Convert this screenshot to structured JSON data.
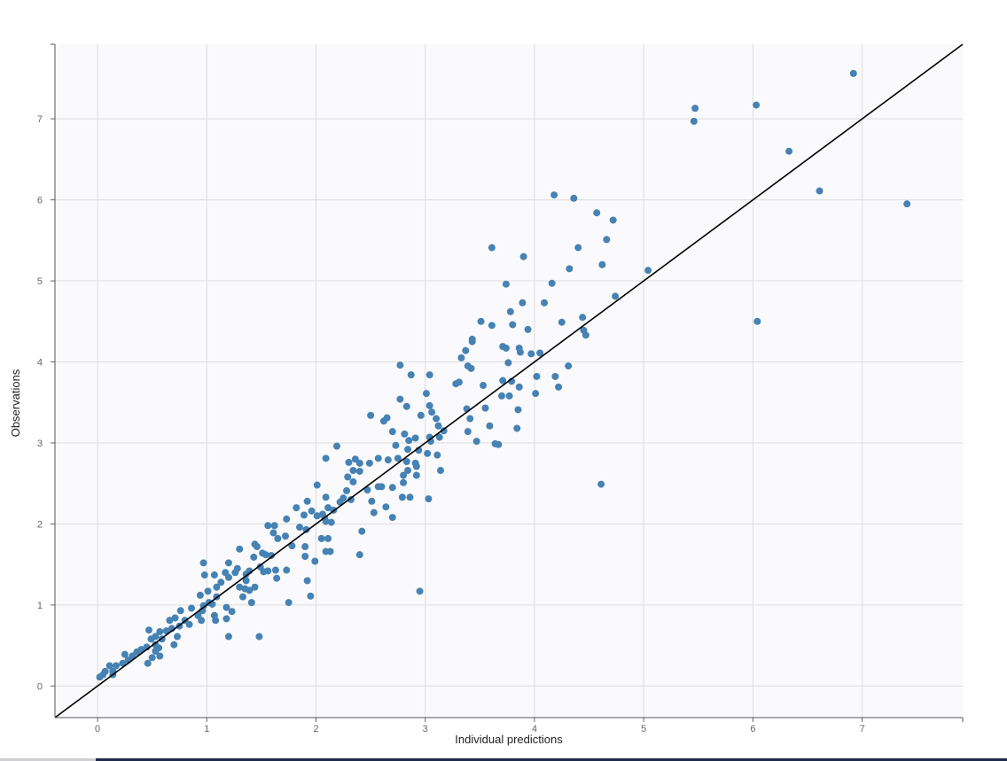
{
  "chart_data": {
    "type": "scatter",
    "title": "",
    "xlabel": "Individual predictions",
    "ylabel": "Observations",
    "xlim": [
      -0.39,
      7.92
    ],
    "ylim": [
      -0.39,
      7.92
    ],
    "grid": true,
    "x_ticks": [
      "0",
      "1",
      "2",
      "3",
      "4",
      "5",
      "6",
      "7"
    ],
    "y_ticks": [
      "0",
      "1",
      "2",
      "3",
      "4",
      "5",
      "6",
      "7"
    ],
    "reference_line": "identity y = x",
    "colors": {
      "points": "#4682b4",
      "line": "#000000",
      "plot_background": "#fafafc",
      "grid": "#dddddd"
    },
    "points": [
      [
        6.92,
        7.56
      ],
      [
        5.47,
        7.13
      ],
      [
        5.46,
        6.97
      ],
      [
        6.03,
        7.17
      ],
      [
        6.33,
        6.6
      ],
      [
        6.61,
        6.11
      ],
      [
        7.41,
        5.95
      ],
      [
        6.04,
        4.5
      ],
      [
        5.04,
        5.13
      ],
      [
        4.74,
        4.81
      ],
      [
        4.18,
        6.06
      ],
      [
        4.36,
        6.02
      ],
      [
        4.57,
        5.84
      ],
      [
        4.72,
        5.75
      ],
      [
        4.66,
        5.51
      ],
      [
        4.4,
        5.41
      ],
      [
        4.62,
        5.2
      ],
      [
        4.32,
        5.15
      ],
      [
        4.16,
        4.97
      ],
      [
        3.61,
        5.41
      ],
      [
        3.9,
        5.3
      ],
      [
        3.74,
        4.96
      ],
      [
        3.89,
        4.73
      ],
      [
        3.78,
        4.62
      ],
      [
        4.09,
        4.73
      ],
      [
        3.51,
        4.5
      ],
      [
        3.61,
        4.45
      ],
      [
        3.8,
        4.46
      ],
      [
        3.94,
        4.4
      ],
      [
        4.25,
        4.49
      ],
      [
        4.44,
        4.55
      ],
      [
        4.45,
        4.39
      ],
      [
        4.47,
        4.33
      ],
      [
        3.43,
        4.28
      ],
      [
        3.43,
        4.25
      ],
      [
        3.71,
        4.19
      ],
      [
        3.74,
        4.17
      ],
      [
        3.37,
        4.14
      ],
      [
        3.86,
        4.17
      ],
      [
        3.87,
        4.12
      ],
      [
        3.97,
        4.1
      ],
      [
        4.05,
        4.11
      ],
      [
        3.33,
        4.05
      ],
      [
        3.76,
        3.99
      ],
      [
        4.31,
        3.95
      ],
      [
        3.39,
        3.95
      ],
      [
        3.42,
        3.92
      ],
      [
        2.77,
        3.96
      ],
      [
        2.87,
        3.84
      ],
      [
        3.04,
        3.84
      ],
      [
        3.28,
        3.73
      ],
      [
        3.31,
        3.75
      ],
      [
        3.53,
        3.71
      ],
      [
        3.71,
        3.77
      ],
      [
        3.79,
        3.76
      ],
      [
        3.86,
        3.69
      ],
      [
        4.02,
        3.82
      ],
      [
        4.19,
        3.82
      ],
      [
        4.22,
        3.69
      ],
      [
        3.7,
        3.58
      ],
      [
        3.77,
        3.58
      ],
      [
        4.01,
        3.61
      ],
      [
        3.01,
        3.61
      ],
      [
        2.77,
        3.54
      ],
      [
        2.83,
        3.45
      ],
      [
        3.04,
        3.46
      ],
      [
        3.06,
        3.38
      ],
      [
        3.1,
        3.3
      ],
      [
        3.55,
        3.43
      ],
      [
        3.38,
        3.42
      ],
      [
        3.85,
        3.41
      ],
      [
        2.5,
        3.34
      ],
      [
        2.65,
        3.31
      ],
      [
        2.62,
        3.27
      ],
      [
        2.96,
        3.34
      ],
      [
        3.41,
        3.3
      ],
      [
        3.12,
        3.21
      ],
      [
        3.59,
        3.21
      ],
      [
        3.84,
        3.18
      ],
      [
        3.17,
        3.15
      ],
      [
        3.39,
        3.14
      ],
      [
        2.7,
        3.14
      ],
      [
        2.81,
        3.11
      ],
      [
        3.13,
        3.07
      ],
      [
        3.04,
        3.07
      ],
      [
        2.91,
        3.06
      ],
      [
        2.85,
        3.03
      ],
      [
        3.47,
        3.02
      ],
      [
        3.64,
        2.99
      ],
      [
        3.67,
        2.98
      ],
      [
        3.05,
        3.02
      ],
      [
        2.73,
        2.97
      ],
      [
        2.84,
        2.92
      ],
      [
        2.94,
        2.91
      ],
      [
        3.02,
        2.87
      ],
      [
        3.11,
        2.85
      ],
      [
        2.19,
        2.96
      ],
      [
        2.57,
        2.81
      ],
      [
        2.66,
        2.79
      ],
      [
        2.75,
        2.81
      ],
      [
        2.83,
        2.77
      ],
      [
        2.91,
        2.75
      ],
      [
        2.3,
        2.76
      ],
      [
        2.36,
        2.8
      ],
      [
        2.09,
        2.81
      ],
      [
        2.4,
        2.75
      ],
      [
        2.49,
        2.75
      ],
      [
        2.92,
        2.71
      ],
      [
        3.14,
        2.66
      ],
      [
        2.34,
        2.66
      ],
      [
        2.4,
        2.65
      ],
      [
        2.84,
        2.66
      ],
      [
        2.92,
        2.6
      ],
      [
        2.8,
        2.6
      ],
      [
        2.29,
        2.58
      ],
      [
        2.34,
        2.52
      ],
      [
        2.8,
        2.51
      ],
      [
        2.6,
        2.46
      ],
      [
        2.57,
        2.46
      ],
      [
        2.7,
        2.45
      ],
      [
        2.01,
        2.48
      ],
      [
        2.47,
        2.42
      ],
      [
        2.28,
        2.41
      ],
      [
        4.61,
        2.49
      ],
      [
        2.79,
        2.33
      ],
      [
        3.03,
        2.31
      ],
      [
        2.86,
        2.33
      ],
      [
        2.09,
        2.33
      ],
      [
        2.25,
        2.32
      ],
      [
        2.32,
        2.3
      ],
      [
        2.51,
        2.28
      ],
      [
        2.22,
        2.27
      ],
      [
        1.92,
        2.28
      ],
      [
        2.64,
        2.21
      ],
      [
        1.82,
        2.2
      ],
      [
        2.11,
        2.2
      ],
      [
        2.16,
        2.17
      ],
      [
        1.96,
        2.16
      ],
      [
        2.53,
        2.14
      ],
      [
        2.06,
        2.12
      ],
      [
        1.89,
        2.11
      ],
      [
        2.01,
        2.1
      ],
      [
        2.08,
        2.07
      ],
      [
        2.7,
        2.08
      ],
      [
        2.09,
        2.03
      ],
      [
        2.14,
        2.02
      ],
      [
        1.73,
        2.06
      ],
      [
        1.62,
        1.98
      ],
      [
        1.85,
        1.96
      ],
      [
        1.56,
        1.98
      ],
      [
        1.91,
        1.93
      ],
      [
        2.42,
        1.91
      ],
      [
        1.61,
        1.89
      ],
      [
        2.05,
        1.82
      ],
      [
        2.11,
        1.82
      ],
      [
        1.72,
        1.85
      ],
      [
        1.65,
        1.82
      ],
      [
        1.44,
        1.75
      ],
      [
        1.9,
        1.72
      ],
      [
        1.78,
        1.73
      ],
      [
        1.46,
        1.72
      ],
      [
        1.3,
        1.69
      ],
      [
        1.51,
        1.64
      ],
      [
        2.09,
        1.66
      ],
      [
        2.13,
        1.66
      ],
      [
        1.9,
        1.6
      ],
      [
        1.59,
        1.61
      ],
      [
        2.4,
        1.62
      ],
      [
        1.43,
        1.59
      ],
      [
        1.54,
        1.62
      ],
      [
        1.99,
        1.54
      ],
      [
        0.97,
        1.52
      ],
      [
        1.2,
        1.52
      ],
      [
        1.49,
        1.47
      ],
      [
        1.52,
        1.41
      ],
      [
        1.26,
        1.4
      ],
      [
        1.39,
        1.42
      ],
      [
        1.36,
        1.38
      ],
      [
        1.63,
        1.43
      ],
      [
        1.73,
        1.43
      ],
      [
        1.17,
        1.4
      ],
      [
        1.28,
        1.45
      ],
      [
        1.56,
        1.42
      ],
      [
        1.07,
        1.37
      ],
      [
        0.98,
        1.37
      ],
      [
        1.2,
        1.34
      ],
      [
        1.36,
        1.3
      ],
      [
        1.64,
        1.33
      ],
      [
        1.92,
        1.3
      ],
      [
        1.13,
        1.28
      ],
      [
        1.3,
        1.22
      ],
      [
        1.44,
        1.22
      ],
      [
        1.35,
        1.2
      ],
      [
        1.01,
        1.17
      ],
      [
        1.09,
        1.22
      ],
      [
        1.39,
        1.18
      ],
      [
        2.95,
        1.17
      ],
      [
        1.95,
        1.11
      ],
      [
        0.94,
        1.12
      ],
      [
        1.09,
        1.1
      ],
      [
        1.33,
        1.1
      ],
      [
        1.02,
        1.03
      ],
      [
        1.41,
        1.03
      ],
      [
        1.75,
        1.03
      ],
      [
        0.97,
        0.99
      ],
      [
        1.05,
        1.01
      ],
      [
        0.86,
        0.96
      ],
      [
        1.18,
        0.97
      ],
      [
        0.96,
        0.93
      ],
      [
        0.76,
        0.93
      ],
      [
        1.23,
        0.92
      ],
      [
        0.92,
        0.87
      ],
      [
        1.07,
        0.87
      ],
      [
        0.8,
        0.81
      ],
      [
        0.66,
        0.81
      ],
      [
        0.71,
        0.84
      ],
      [
        1.18,
        0.83
      ],
      [
        1.08,
        0.81
      ],
      [
        0.95,
        0.81
      ],
      [
        0.84,
        0.76
      ],
      [
        0.75,
        0.74
      ],
      [
        0.68,
        0.71
      ],
      [
        0.63,
        0.68
      ],
      [
        0.47,
        0.69
      ],
      [
        0.57,
        0.67
      ],
      [
        0.73,
        0.61
      ],
      [
        1.2,
        0.61
      ],
      [
        1.48,
        0.61
      ],
      [
        0.53,
        0.61
      ],
      [
        0.49,
        0.58
      ],
      [
        0.59,
        0.58
      ],
      [
        0.7,
        0.51
      ],
      [
        0.53,
        0.51
      ],
      [
        0.45,
        0.48
      ],
      [
        0.56,
        0.47
      ],
      [
        0.4,
        0.45
      ],
      [
        0.36,
        0.42
      ],
      [
        0.53,
        0.43
      ],
      [
        0.5,
        0.35
      ],
      [
        0.57,
        0.37
      ],
      [
        0.32,
        0.37
      ],
      [
        0.25,
        0.39
      ],
      [
        0.28,
        0.32
      ],
      [
        0.46,
        0.28
      ],
      [
        0.23,
        0.28
      ],
      [
        0.17,
        0.25
      ],
      [
        0.11,
        0.25
      ],
      [
        0.14,
        0.18
      ],
      [
        0.07,
        0.18
      ],
      [
        0.05,
        0.14
      ],
      [
        0.02,
        0.11
      ],
      [
        0.14,
        0.14
      ]
    ]
  }
}
